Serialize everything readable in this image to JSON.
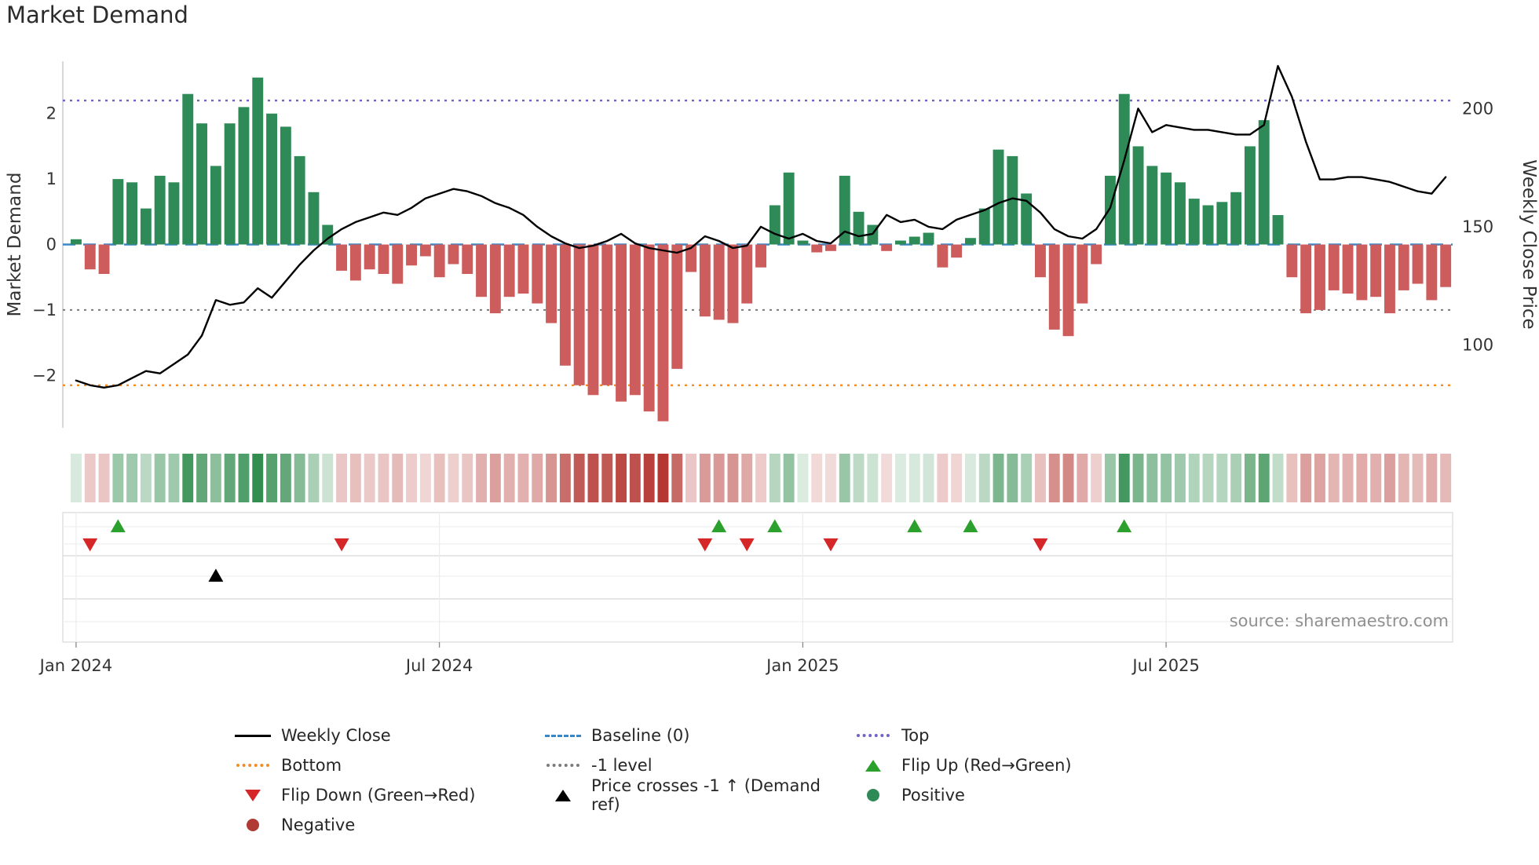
{
  "title": "Market Demand",
  "source": "source: sharemaestro.com",
  "legend": {
    "items": [
      {
        "label": "Weekly Close",
        "icon": "solid-line",
        "color": "#000000"
      },
      {
        "label": "Baseline (0)",
        "icon": "dashed-line",
        "color": "#3a87c8"
      },
      {
        "label": "Top",
        "icon": "dotted-line",
        "color": "#6f63c8"
      },
      {
        "label": "Bottom",
        "icon": "dotted-line",
        "color": "#f28c28"
      },
      {
        "label": "-1 level",
        "icon": "dotted-line",
        "color": "#7a7a7a"
      },
      {
        "label": "Flip Up (Red→Green)",
        "icon": "triangle-up",
        "color": "#2ca02c"
      },
      {
        "label": "Flip Down (Green→Red)",
        "icon": "triangle-down",
        "color": "#d62728"
      },
      {
        "label": "Price crosses -1 ↑ (Demand ref)",
        "icon": "triangle-up",
        "color": "#000000"
      },
      {
        "label": "Positive",
        "icon": "circle",
        "color": "#2e8b57"
      },
      {
        "label": "Negative",
        "icon": "circle",
        "color": "#b03a34"
      }
    ]
  },
  "chart_data": {
    "type": "bar+line",
    "title": "Market Demand",
    "x_tick_labels": [
      "Jan 2024",
      "Jul 2024",
      "Jan 2025",
      "Jul 2025"
    ],
    "x_tick_indices": [
      0,
      26,
      52,
      78
    ],
    "left_axis": {
      "label": "Market Demand",
      "ticks": [
        -2,
        -1,
        0,
        1,
        2
      ],
      "ylim": [
        -2.8,
        2.8
      ]
    },
    "right_axis": {
      "label": "Weekly Close Price",
      "ticks": [
        100,
        150,
        200
      ],
      "ylim": [
        65,
        220
      ]
    },
    "reference_lines": {
      "top": 2.2,
      "baseline": 0,
      "minus1": -1,
      "bottom": -2.15
    },
    "series": [
      {
        "name": "Market Demand",
        "type": "bar",
        "values": [
          0.08,
          -0.38,
          -0.45,
          1.0,
          0.95,
          0.55,
          1.05,
          0.95,
          2.3,
          1.85,
          1.2,
          1.85,
          2.1,
          2.55,
          2.0,
          1.8,
          1.35,
          0.8,
          0.3,
          -0.4,
          -0.55,
          -0.38,
          -0.45,
          -0.6,
          -0.32,
          -0.18,
          -0.5,
          -0.3,
          -0.45,
          -0.8,
          -1.05,
          -0.8,
          -0.75,
          -0.9,
          -1.2,
          -1.85,
          -2.15,
          -2.3,
          -2.15,
          -2.4,
          -2.3,
          -2.55,
          -2.7,
          -1.9,
          -0.42,
          -1.1,
          -1.15,
          -1.2,
          -0.9,
          -0.35,
          0.6,
          1.1,
          0.06,
          -0.12,
          -0.1,
          1.05,
          0.5,
          0.3,
          -0.1,
          0.06,
          0.12,
          0.18,
          -0.35,
          -0.2,
          0.1,
          0.55,
          1.45,
          1.35,
          0.78,
          -0.5,
          -1.3,
          -1.4,
          -0.9,
          -0.3,
          1.05,
          2.3,
          1.5,
          1.2,
          1.1,
          0.95,
          0.7,
          0.6,
          0.65,
          0.8,
          1.5,
          1.9,
          0.45,
          -0.5,
          -1.05,
          -1.0,
          -0.7,
          -0.75,
          -0.85,
          -0.8,
          -1.05,
          -0.7,
          -0.6,
          -0.85,
          -0.65
        ]
      },
      {
        "name": "Weekly Close",
        "type": "line",
        "values": [
          85,
          83,
          82,
          83,
          86,
          89,
          88,
          92,
          96,
          104,
          119,
          117,
          118,
          124,
          120,
          127,
          134,
          140,
          145,
          149,
          152,
          154,
          156,
          155,
          158,
          162,
          164,
          166,
          165,
          163,
          160,
          158,
          155,
          150,
          146,
          143,
          141,
          142,
          144,
          147,
          143,
          141,
          140,
          139,
          141,
          146,
          144,
          141,
          142,
          150,
          147,
          145,
          147,
          144,
          143,
          148,
          146,
          147,
          155,
          152,
          153,
          150,
          149,
          153,
          155,
          157,
          160,
          162,
          161,
          156,
          149,
          146,
          145,
          149,
          158,
          178,
          200,
          190,
          193,
          192,
          191,
          191,
          190,
          189,
          189,
          193,
          218,
          205,
          186,
          170,
          170,
          171,
          171,
          170,
          169,
          167,
          165,
          164,
          171
        ]
      }
    ],
    "markers": {
      "flip_up_indices": [
        3,
        46,
        50,
        60,
        64,
        75
      ],
      "flip_down_indices": [
        1,
        19,
        45,
        48,
        54,
        69
      ],
      "price_cross_indices": [
        10
      ]
    },
    "heatmap": {
      "source_series": "Market Demand",
      "max_abs": 2.7
    },
    "colors": {
      "positive": "#2e8b57",
      "negative": "#cd5c5c",
      "price_line": "#000000",
      "top": "#6f63c8",
      "baseline": "#3a87c8",
      "minus1": "#7a7a7a",
      "bottom": "#f28c28",
      "flip_up": "#2ca02c",
      "flip_down": "#d62728",
      "price_cross": "#000000",
      "heat_pos_rgb": [
        40,
        135,
        70
      ],
      "heat_neg_rgb": [
        180,
        55,
        50
      ]
    },
    "legend_position": "bottom",
    "grid": false
  }
}
